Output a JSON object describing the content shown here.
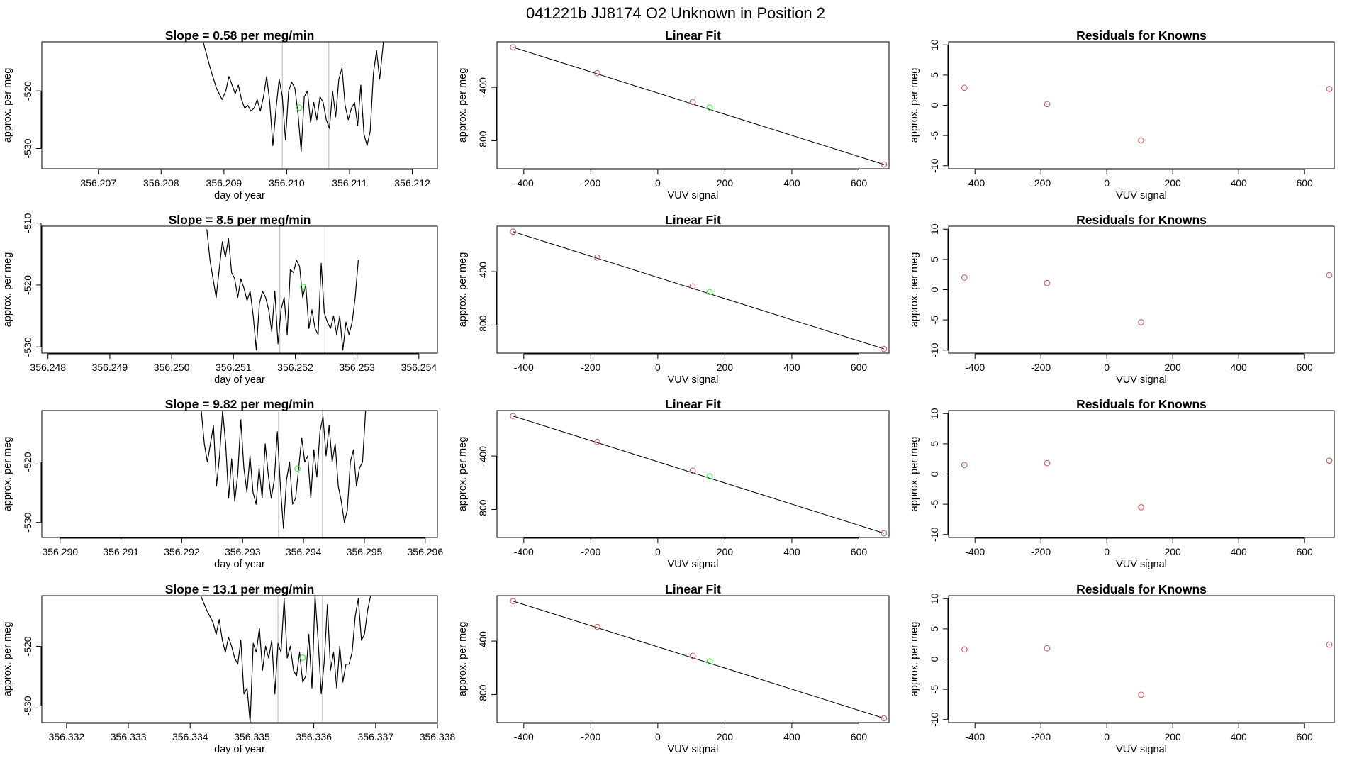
{
  "main_title": "041221b     JJ8174   O2 Unknown in Position  2",
  "colors": {
    "line": "#000000",
    "known_point": "#cd5c5c",
    "unknown_point": "#33ee33",
    "vline": "#c8c8c8",
    "frame": "#000000"
  },
  "chart_data": [
    {
      "type": "line",
      "title": "Slope =  0.58  per meg/min",
      "xlabel": "day of year",
      "ylabel": "approx. per meg",
      "xlim": [
        356.2061,
        356.2124
      ],
      "ylim": [
        -533.5,
        -511.5
      ],
      "xticks": [
        356.207,
        356.208,
        356.209,
        356.21,
        356.211,
        356.212
      ],
      "xtick_labels": [
        "356.207",
        "356.208",
        "356.209",
        "356.210",
        "356.211",
        "356.212"
      ],
      "yticks": [
        -520,
        -530
      ],
      "ytick_labels": [
        "-520",
        "-530"
      ],
      "vlines": [
        356.20993,
        356.21067
      ],
      "unknown_point": {
        "x": 356.2102,
        "y": -522.9
      },
      "x": [
        356.20867,
        356.20878,
        356.20888,
        356.20897,
        356.20903,
        356.20908,
        356.20913,
        356.20918,
        356.20923,
        356.20928,
        356.20933,
        356.20938,
        356.20943,
        356.20948,
        356.20953,
        356.20958,
        356.20963,
        356.20968,
        356.20973,
        356.20978,
        356.20983,
        356.20988,
        356.20993,
        356.20998,
        356.21003,
        356.21008,
        356.21013,
        356.21018,
        356.21023,
        356.21028,
        356.21033,
        356.21038,
        356.21043,
        356.21048,
        356.21053,
        356.21058,
        356.21063,
        356.21068,
        356.21073,
        356.21078,
        356.21083,
        356.21088,
        356.21093,
        356.21098,
        356.21103,
        356.21108,
        356.21113,
        356.21118,
        356.21123,
        356.21128,
        356.21133,
        356.21138,
        356.21143,
        356.21148,
        356.21154
      ],
      "y": [
        -511.5,
        -516,
        -519.5,
        -521.5,
        -520,
        -517.5,
        -519,
        -520.5,
        -519,
        -521.5,
        -523,
        -522.5,
        -523.5,
        -523,
        -521.5,
        -523.5,
        -521,
        -517.5,
        -522,
        -529.5,
        -523,
        -518,
        -521,
        -528.5,
        -520,
        -518.5,
        -519.5,
        -524,
        -530.5,
        -521,
        -520,
        -525.5,
        -522,
        -525,
        -521,
        -522,
        -525,
        -526.5,
        -520,
        -524.5,
        -518,
        -516,
        -522.5,
        -525,
        -523,
        -522,
        -526,
        -519,
        -527.5,
        -529.5,
        -527,
        -517,
        -513,
        -518,
        -511.5
      ]
    },
    {
      "type": "line",
      "title": "Slope =  8.5  per meg/min",
      "xlabel": "day of year",
      "ylabel": "approx. per meg",
      "xlim": [
        356.2479,
        356.2543
      ],
      "ylim": [
        -531,
        -510.5
      ],
      "xticks": [
        356.248,
        356.249,
        356.25,
        356.251,
        356.252,
        356.253,
        356.254
      ],
      "xtick_labels": [
        "356.248",
        "356.249",
        "356.250",
        "356.251",
        "356.252",
        "356.253",
        "356.254"
      ],
      "yticks": [
        -510,
        -520,
        -530
      ],
      "ytick_labels": [
        "-510",
        "-520",
        "-530"
      ],
      "vlines": [
        356.25175,
        356.25248
      ],
      "unknown_point": {
        "x": 356.25213,
        "y": -520.3
      },
      "x": [
        356.25057,
        356.25062,
        356.25067,
        356.25072,
        356.25077,
        356.25082,
        356.25087,
        356.25092,
        356.25097,
        356.25102,
        356.25107,
        356.25112,
        356.25117,
        356.25122,
        356.25127,
        356.25132,
        356.25137,
        356.25142,
        356.25147,
        356.25152,
        356.25157,
        356.25162,
        356.25167,
        356.25172,
        356.25177,
        356.25182,
        356.25187,
        356.25192,
        356.25197,
        356.25202,
        356.25207,
        356.25212,
        356.25217,
        356.25222,
        356.25227,
        356.25232,
        356.25237,
        356.25242,
        356.25247,
        356.25252,
        356.25257,
        356.25262,
        356.25267,
        356.25272,
        356.25277,
        356.25282,
        356.25287,
        356.25292,
        356.25297,
        356.25302
      ],
      "y": [
        -511,
        -516,
        -519,
        -522,
        -517.5,
        -513,
        -515.5,
        -512.5,
        -518,
        -519,
        -522,
        -519,
        -520.5,
        -522.5,
        -521,
        -525,
        -530.5,
        -523,
        -521,
        -522,
        -524,
        -527.5,
        -521,
        -529.5,
        -524,
        -522,
        -528,
        -517.5,
        -518,
        -516,
        -517,
        -522,
        -520,
        -527,
        -524,
        -527,
        -528,
        -516.5,
        -524.5,
        -526,
        -527,
        -525,
        -528,
        -525,
        -530.5,
        -526,
        -528,
        -526,
        -522,
        -516
      ]
    },
    {
      "type": "line",
      "title": "Slope =  9.82  per meg/min",
      "xlabel": "day of year",
      "ylabel": "approx. per meg",
      "xlim": [
        356.2897,
        356.2962
      ],
      "ylim": [
        -532.5,
        -511.5
      ],
      "xticks": [
        356.29,
        356.291,
        356.292,
        356.293,
        356.294,
        356.295,
        356.296
      ],
      "xtick_labels": [
        "356.290",
        "356.291",
        "356.292",
        "356.293",
        "356.294",
        "356.295",
        "356.296"
      ],
      "yticks": [
        -520,
        -530
      ],
      "ytick_labels": [
        "-520",
        "-530"
      ],
      "vlines": [
        356.29359,
        356.29431
      ],
      "unknown_point": {
        "x": 356.2939,
        "y": -521.1
      },
      "x": [
        356.29232,
        356.29237,
        356.29242,
        356.29247,
        356.29252,
        356.29257,
        356.29262,
        356.29267,
        356.29272,
        356.29277,
        356.29282,
        356.29287,
        356.29292,
        356.29297,
        356.29302,
        356.29307,
        356.29312,
        356.29317,
        356.29322,
        356.29327,
        356.29332,
        356.29337,
        356.29342,
        356.29347,
        356.29352,
        356.29357,
        356.29362,
        356.29367,
        356.29372,
        356.29377,
        356.29382,
        356.29387,
        356.29392,
        356.29397,
        356.29402,
        356.29407,
        356.29412,
        356.29417,
        356.29422,
        356.29427,
        356.29432,
        356.29437,
        356.29442,
        356.29447,
        356.29452,
        356.29457,
        356.29462,
        356.29467,
        356.29472,
        356.29477,
        356.29482,
        356.29487,
        356.29492,
        356.29497,
        356.29502
      ],
      "y": [
        -511.5,
        -517,
        -520,
        -517,
        -514,
        -524,
        -519,
        -511.5,
        -517,
        -526,
        -519.5,
        -526.5,
        -522,
        -513,
        -521,
        -525,
        -519,
        -525,
        -527,
        -521,
        -526,
        -517,
        -522,
        -526,
        -523,
        -515,
        -524,
        -531,
        -523,
        -520,
        -527,
        -526,
        -521,
        -516,
        -520,
        -519,
        -526,
        -518,
        -522.5,
        -515,
        -512.5,
        -519,
        -514,
        -520,
        -517,
        -524,
        -526.5,
        -530,
        -528,
        -520,
        -518,
        -524,
        -521,
        -520,
        -511.5
      ]
    },
    {
      "type": "line",
      "title": "Slope =  13.1  per meg/min",
      "xlabel": "day of year",
      "ylabel": "approx. per meg",
      "xlim": [
        356.3316,
        356.338
      ],
      "ylim": [
        -532.8,
        -511.5
      ],
      "xticks": [
        356.332,
        356.333,
        356.334,
        356.335,
        356.336,
        356.337,
        356.338
      ],
      "xtick_labels": [
        "356.332",
        "356.333",
        "356.334",
        "356.335",
        "356.336",
        "356.337",
        "356.338"
      ],
      "yticks": [
        -520,
        -530
      ],
      "ytick_labels": [
        "-520",
        "-530"
      ],
      "vlines": [
        356.33542,
        356.33614
      ],
      "unknown_point": {
        "x": 356.33582,
        "y": -521.9
      },
      "x": [
        356.33417,
        356.33427,
        356.33437,
        356.33442,
        356.33447,
        356.33452,
        356.33457,
        356.33462,
        356.33467,
        356.33472,
        356.33477,
        356.33482,
        356.33487,
        356.33492,
        356.33497,
        356.33502,
        356.33507,
        356.33512,
        356.33517,
        356.33522,
        356.33527,
        356.33532,
        356.33537,
        356.33542,
        356.33547,
        356.33552,
        356.33557,
        356.33562,
        356.33567,
        356.33572,
        356.33577,
        356.33582,
        356.33587,
        356.33592,
        356.33597,
        356.33602,
        356.33607,
        356.33612,
        356.33617,
        356.33622,
        356.33627,
        356.33632,
        356.33637,
        356.33642,
        356.33647,
        356.33652,
        356.33657,
        356.33662,
        356.33667,
        356.33672,
        356.33677,
        356.33682,
        356.33687,
        356.33692
      ],
      "y": [
        -511.5,
        -514,
        -516,
        -518,
        -515.5,
        -519,
        -521,
        -518.5,
        -520,
        -522,
        -523,
        -519,
        -528,
        -527,
        -532.8,
        -519.5,
        -521,
        -517,
        -524,
        -520,
        -522,
        -519,
        -528,
        -519.5,
        -521,
        -512,
        -522,
        -520,
        -524,
        -525,
        -521,
        -526,
        -525,
        -518,
        -527,
        -511.5,
        -519,
        -528,
        -522.5,
        -513,
        -524,
        -521,
        -527,
        -520,
        -526,
        -523,
        -523,
        -521,
        -515,
        -512,
        -519,
        -518,
        -514,
        -511.5
      ]
    },
    {
      "type": "scatter",
      "title": "Linear Fit",
      "xlabel": "VUV signal",
      "ylabel": "approx. per meg",
      "xlim": [
        -480,
        690
      ],
      "ylim": [
        -1010,
        -60
      ],
      "xticks": [
        -400,
        -200,
        0,
        200,
        400,
        600
      ],
      "xtick_labels": [
        "-400",
        "-200",
        "0",
        "200",
        "400",
        "600"
      ],
      "yticks": [
        -400,
        -800
      ],
      "ytick_labels": [
        "-400",
        "-800"
      ],
      "known_x": [
        -432,
        -181,
        104,
        675
      ],
      "known_y": [
        -101,
        -294,
        -510,
        -978
      ],
      "unknown_x": [
        155
      ],
      "unknown_y": [
        -552
      ],
      "fit_line": [
        [
          -432,
          -101
        ],
        [
          675,
          -978
        ]
      ]
    },
    {
      "type": "scatter",
      "title": "Linear Fit",
      "xlabel": "VUV signal",
      "ylabel": "approx. per meg",
      "xlim": [
        -480,
        690
      ],
      "ylim": [
        -1010,
        -60
      ],
      "xticks": [
        -400,
        -200,
        0,
        200,
        400,
        600
      ],
      "xtick_labels": [
        "-400",
        "-200",
        "0",
        "200",
        "400",
        "600"
      ],
      "yticks": [
        -400,
        -800
      ],
      "ytick_labels": [
        "-400",
        "-800"
      ],
      "known_x": [
        -432,
        -181,
        104,
        675
      ],
      "known_y": [
        -101,
        -294,
        -510,
        -978
      ],
      "unknown_x": [
        155
      ],
      "unknown_y": [
        -552
      ],
      "fit_line": [
        [
          -432,
          -101
        ],
        [
          675,
          -978
        ]
      ]
    },
    {
      "type": "scatter",
      "title": "Linear Fit",
      "xlabel": "VUV signal",
      "ylabel": "approx. per meg",
      "xlim": [
        -480,
        690
      ],
      "ylim": [
        -1010,
        -60
      ],
      "xticks": [
        -400,
        -200,
        0,
        200,
        400,
        600
      ],
      "xtick_labels": [
        "-400",
        "-200",
        "0",
        "200",
        "400",
        "600"
      ],
      "yticks": [
        -400,
        -800
      ],
      "ytick_labels": [
        "-400",
        "-800"
      ],
      "known_x": [
        -432,
        -181,
        104,
        675
      ],
      "known_y": [
        -101,
        -294,
        -510,
        -978
      ],
      "unknown_x": [
        155
      ],
      "unknown_y": [
        -552
      ],
      "fit_line": [
        [
          -432,
          -101
        ],
        [
          675,
          -978
        ]
      ]
    },
    {
      "type": "scatter",
      "title": "Linear Fit",
      "xlabel": "VUV signal",
      "ylabel": "approx. per meg",
      "xlim": [
        -480,
        690
      ],
      "ylim": [
        -1010,
        -60
      ],
      "xticks": [
        -400,
        -200,
        0,
        200,
        400,
        600
      ],
      "xtick_labels": [
        "-400",
        "-200",
        "0",
        "200",
        "400",
        "600"
      ],
      "yticks": [
        -400,
        -800
      ],
      "ytick_labels": [
        "-400",
        "-800"
      ],
      "known_x": [
        -432,
        -181,
        104,
        675
      ],
      "known_y": [
        -101,
        -294,
        -510,
        -978
      ],
      "unknown_x": [
        155
      ],
      "unknown_y": [
        -552
      ],
      "fit_line": [
        [
          -432,
          -101
        ],
        [
          675,
          -978
        ]
      ]
    },
    {
      "type": "scatter",
      "title": "Residuals for Knowns",
      "xlabel": "VUV signal",
      "ylabel": "approx. per meg",
      "xlim": [
        -480,
        690
      ],
      "ylim": [
        -10.5,
        10.5
      ],
      "xticks": [
        -400,
        -200,
        0,
        200,
        400,
        600
      ],
      "xtick_labels": [
        "-400",
        "-200",
        "0",
        "200",
        "400",
        "600"
      ],
      "yticks": [
        10,
        5,
        0,
        -5,
        -10
      ],
      "ytick_labels": [
        "10",
        "5",
        "0",
        "-5",
        "-10"
      ],
      "x": [
        -432,
        -181,
        104,
        675
      ],
      "y": [
        2.9,
        0.2,
        -5.8,
        2.7
      ]
    },
    {
      "type": "scatter",
      "title": "Residuals for Knowns",
      "xlabel": "VUV signal",
      "ylabel": "approx. per meg",
      "xlim": [
        -480,
        690
      ],
      "ylim": [
        -10.5,
        10.5
      ],
      "xticks": [
        -400,
        -200,
        0,
        200,
        400,
        600
      ],
      "xtick_labels": [
        "-400",
        "-200",
        "0",
        "200",
        "400",
        "600"
      ],
      "yticks": [
        10,
        5,
        0,
        -5,
        -10
      ],
      "ytick_labels": [
        "10",
        "5",
        "0",
        "-5",
        "-10"
      ],
      "x": [
        -432,
        -181,
        104,
        675
      ],
      "y": [
        2.0,
        1.1,
        -5.4,
        2.4
      ]
    },
    {
      "type": "scatter",
      "title": "Residuals for Knowns",
      "xlabel": "VUV signal",
      "ylabel": "approx. per meg",
      "xlim": [
        -480,
        690
      ],
      "ylim": [
        -10.5,
        10.5
      ],
      "xticks": [
        -400,
        -200,
        0,
        200,
        400,
        600
      ],
      "xtick_labels": [
        "-400",
        "-200",
        "0",
        "200",
        "400",
        "600"
      ],
      "yticks": [
        10,
        5,
        0,
        -5,
        -10
      ],
      "ytick_labels": [
        "10",
        "5",
        "0",
        "-5",
        "-10"
      ],
      "x": [
        -432,
        -181,
        104,
        675
      ],
      "y": [
        1.5,
        1.8,
        -5.5,
        2.2
      ]
    },
    {
      "type": "scatter",
      "title": "Residuals for Knowns",
      "xlabel": "VUV signal",
      "ylabel": "approx. per meg",
      "xlim": [
        -480,
        690
      ],
      "ylim": [
        -10.5,
        10.5
      ],
      "xticks": [
        -400,
        -200,
        0,
        200,
        400,
        600
      ],
      "xtick_labels": [
        "-400",
        "-200",
        "0",
        "200",
        "400",
        "600"
      ],
      "yticks": [
        10,
        5,
        0,
        -5,
        -10
      ],
      "ytick_labels": [
        "10",
        "5",
        "0",
        "-5",
        "-10"
      ],
      "x": [
        -432,
        -181,
        104,
        675
      ],
      "y": [
        1.6,
        1.8,
        -5.9,
        2.4
      ]
    }
  ]
}
